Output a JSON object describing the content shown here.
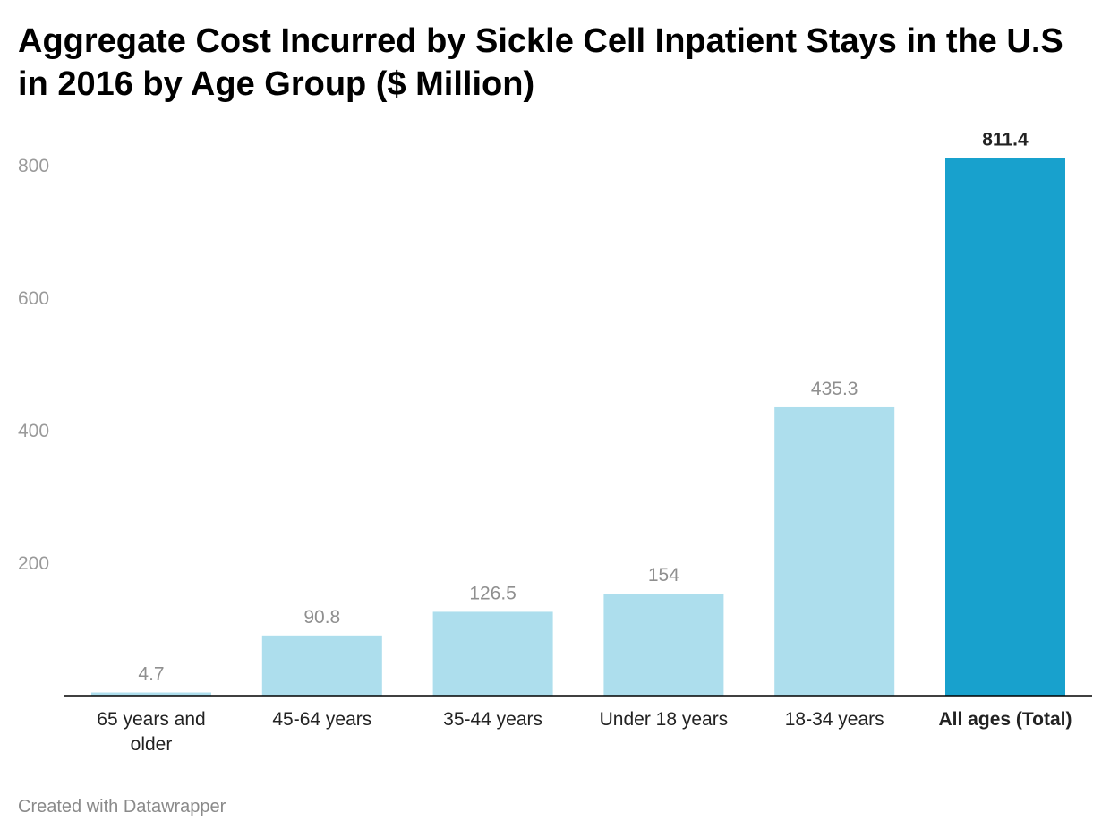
{
  "title": "Aggregate Cost Incurred by Sickle Cell Inpatient Stays in the U.S in 2016 by Age Group ($ Million)",
  "footer": "Created with Datawrapper",
  "colors": {
    "normal_bar": "#addeed",
    "highlight_bar": "#18a1cd",
    "axis": "#000000",
    "tick_label": "#9a9a9a",
    "value_label": "#8f8f8f"
  },
  "chart_data": {
    "type": "bar",
    "categories": [
      [
        "65 years and",
        "older"
      ],
      [
        "45-64 years"
      ],
      [
        "35-44 years"
      ],
      [
        "Under 18 years"
      ],
      [
        "18-34 years"
      ],
      [
        "All ages (Total)"
      ]
    ],
    "values": [
      4.7,
      90.8,
      126.5,
      154,
      435.3,
      811.4
    ],
    "value_labels": [
      "4.7",
      "90.8",
      "126.5",
      "154",
      "435.3",
      "811.4"
    ],
    "highlight_index": 5,
    "yticks": [
      200,
      400,
      600,
      800
    ],
    "ylim": [
      0,
      811.4
    ],
    "grid": false
  }
}
